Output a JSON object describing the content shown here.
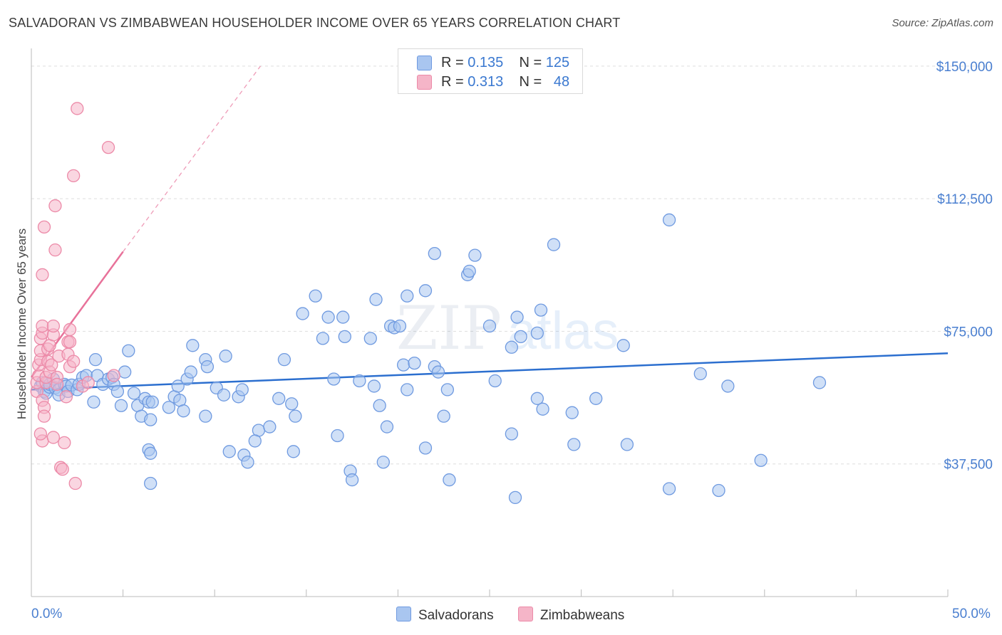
{
  "title": "SALVADORAN VS ZIMBABWEAN HOUSEHOLDER INCOME OVER 65 YEARS CORRELATION CHART",
  "source": "Source: ZipAtlas.com",
  "watermark": {
    "zip": "ZIP",
    "atlas": "atlas"
  },
  "colors": {
    "blue_fill": "#a9c6f0",
    "blue_stroke": "#6f9ae0",
    "blue_line": "#2c6fcf",
    "pink_fill": "#f5b5c8",
    "pink_stroke": "#ec8aa8",
    "pink_line": "#e8729a",
    "axis_text": "#4a7fd0",
    "grid": "#dddddd"
  },
  "legend": {
    "rows": [
      {
        "r_label": "R = ",
        "r_value": "0.135",
        "n_label": "N = ",
        "n_value": "125",
        "color": "#a9c6f0"
      },
      {
        "r_label": "R = ",
        "r_value": "0.313",
        "n_label": "N = ",
        "n_value": "48",
        "color": "#f5b5c8"
      }
    ]
  },
  "bottom_legend": [
    "Salvadorans",
    "Zimbabweans"
  ],
  "chart_data": {
    "type": "scatter",
    "title": "SALVADORAN VS ZIMBABWEAN HOUSEHOLDER INCOME OVER 65 YEARS CORRELATION CHART",
    "xlabel": "",
    "ylabel": "Householder Income Over 65 years",
    "xlim": [
      0,
      50
    ],
    "ylim": [
      0,
      155000
    ],
    "x_tick_labels": {
      "min": "0.0%",
      "max": "50.0%"
    },
    "y_ticks": [
      {
        "value": 37500,
        "label": "$37,500"
      },
      {
        "value": 75000,
        "label": "$75,000"
      },
      {
        "value": 112500,
        "label": "$112,500"
      },
      {
        "value": 150000,
        "label": "$150,000"
      }
    ],
    "grid": "horizontal dashed",
    "series": [
      {
        "name": "Salvadorans",
        "r": 0.135,
        "n": 125,
        "trend": {
          "x0": 0,
          "y0": 58500,
          "x1": 50,
          "y1": 68800
        },
        "points": [
          [
            0.5,
            59500
          ],
          [
            0.6,
            60500
          ],
          [
            0.7,
            58000
          ],
          [
            0.8,
            57500
          ],
          [
            1.0,
            59200
          ],
          [
            1.0,
            60000
          ],
          [
            1.2,
            61500
          ],
          [
            1.3,
            59000
          ],
          [
            1.5,
            58500
          ],
          [
            1.5,
            57000
          ],
          [
            1.8,
            60000
          ],
          [
            1.9,
            59500
          ],
          [
            2.0,
            58000
          ],
          [
            2.2,
            59800
          ],
          [
            2.5,
            58500
          ],
          [
            2.6,
            60000
          ],
          [
            2.8,
            62000
          ],
          [
            3.0,
            62500
          ],
          [
            3.4,
            55000
          ],
          [
            3.5,
            67000
          ],
          [
            3.6,
            62500
          ],
          [
            3.9,
            60000
          ],
          [
            4.2,
            61500
          ],
          [
            4.4,
            62000
          ],
          [
            4.5,
            60000
          ],
          [
            4.7,
            58000
          ],
          [
            4.9,
            54000
          ],
          [
            5.1,
            63500
          ],
          [
            5.3,
            69500
          ],
          [
            5.6,
            57500
          ],
          [
            5.8,
            54000
          ],
          [
            6.0,
            51000
          ],
          [
            6.2,
            56000
          ],
          [
            6.4,
            55000
          ],
          [
            6.5,
            50000
          ],
          [
            6.6,
            55000
          ],
          [
            6.4,
            41500
          ],
          [
            6.5,
            40500
          ],
          [
            6.5,
            32000
          ],
          [
            7.5,
            53500
          ],
          [
            7.8,
            56500
          ],
          [
            8.0,
            59500
          ],
          [
            8.1,
            55500
          ],
          [
            8.3,
            52500
          ],
          [
            8.5,
            61500
          ],
          [
            8.7,
            63500
          ],
          [
            8.8,
            71000
          ],
          [
            9.5,
            67000
          ],
          [
            9.5,
            51000
          ],
          [
            9.6,
            65000
          ],
          [
            10.1,
            59000
          ],
          [
            10.5,
            57000
          ],
          [
            10.6,
            68000
          ],
          [
            10.8,
            41000
          ],
          [
            11.3,
            56500
          ],
          [
            11.5,
            58500
          ],
          [
            11.6,
            40000
          ],
          [
            11.8,
            38000
          ],
          [
            12.4,
            47000
          ],
          [
            12.2,
            44000
          ],
          [
            13.0,
            48000
          ],
          [
            13.5,
            56000
          ],
          [
            13.8,
            67000
          ],
          [
            14.2,
            54500
          ],
          [
            14.3,
            41000
          ],
          [
            14.8,
            80000
          ],
          [
            14.4,
            51000
          ],
          [
            15.5,
            85000
          ],
          [
            15.9,
            73000
          ],
          [
            16.2,
            79000
          ],
          [
            16.5,
            61500
          ],
          [
            16.7,
            45500
          ],
          [
            17.0,
            79000
          ],
          [
            17.1,
            73500
          ],
          [
            17.4,
            35500
          ],
          [
            17.5,
            33000
          ],
          [
            17.9,
            61000
          ],
          [
            18.5,
            73000
          ],
          [
            18.7,
            59500
          ],
          [
            18.8,
            84000
          ],
          [
            19.0,
            54000
          ],
          [
            19.4,
            48000
          ],
          [
            19.2,
            38000
          ],
          [
            19.6,
            76500
          ],
          [
            19.8,
            76000
          ],
          [
            20.1,
            76500
          ],
          [
            20.3,
            65500
          ],
          [
            20.5,
            85000
          ],
          [
            20.9,
            66000
          ],
          [
            20.5,
            58500
          ],
          [
            21.5,
            86500
          ],
          [
            21.5,
            42000
          ],
          [
            22.0,
            65000
          ],
          [
            22.0,
            97000
          ],
          [
            22.2,
            63500
          ],
          [
            22.5,
            51000
          ],
          [
            22.7,
            58500
          ],
          [
            22.8,
            33000
          ],
          [
            23.8,
            91000
          ],
          [
            23.9,
            92000
          ],
          [
            24.2,
            96500
          ],
          [
            25.0,
            76500
          ],
          [
            25.3,
            61000
          ],
          [
            26.5,
            79000
          ],
          [
            26.2,
            70500
          ],
          [
            26.7,
            73500
          ],
          [
            26.2,
            46000
          ],
          [
            26.4,
            28000
          ],
          [
            27.6,
            74500
          ],
          [
            27.8,
            81000
          ],
          [
            27.6,
            56000
          ],
          [
            27.9,
            53000
          ],
          [
            28.5,
            99500
          ],
          [
            29.5,
            52000
          ],
          [
            29.6,
            43000
          ],
          [
            30.8,
            56000
          ],
          [
            32.3,
            71000
          ],
          [
            32.5,
            43000
          ],
          [
            34.8,
            106500
          ],
          [
            34.8,
            30500
          ],
          [
            36.5,
            63000
          ],
          [
            37.5,
            30000
          ],
          [
            38.0,
            59500
          ],
          [
            39.8,
            38500
          ],
          [
            43.0,
            60500
          ]
        ]
      },
      {
        "name": "Zimbabweans",
        "r": 0.313,
        "n": 48,
        "trend": {
          "x0": 0,
          "y0": 62000,
          "x1": 5.0,
          "y1": 97500,
          "dashed_to": {
            "x": 12.5,
            "y": 150000
          }
        },
        "points": [
          [
            0.3,
            58000
          ],
          [
            0.3,
            60500
          ],
          [
            0.4,
            62500
          ],
          [
            0.4,
            65500
          ],
          [
            0.5,
            67000
          ],
          [
            0.5,
            69500
          ],
          [
            0.5,
            73000
          ],
          [
            0.6,
            74500
          ],
          [
            0.6,
            76500
          ],
          [
            0.6,
            55500
          ],
          [
            0.7,
            53500
          ],
          [
            0.7,
            51000
          ],
          [
            0.6,
            44000
          ],
          [
            0.5,
            46000
          ],
          [
            0.6,
            91000
          ],
          [
            0.7,
            104500
          ],
          [
            0.8,
            60500
          ],
          [
            0.8,
            62000
          ],
          [
            0.9,
            66500
          ],
          [
            0.9,
            70000
          ],
          [
            1.0,
            71000
          ],
          [
            1.0,
            63500
          ],
          [
            1.1,
            65500
          ],
          [
            1.2,
            74000
          ],
          [
            1.2,
            76500
          ],
          [
            1.2,
            45000
          ],
          [
            1.3,
            110500
          ],
          [
            1.3,
            98000
          ],
          [
            1.4,
            62000
          ],
          [
            1.4,
            60000
          ],
          [
            1.5,
            68000
          ],
          [
            1.6,
            36500
          ],
          [
            1.7,
            36000
          ],
          [
            1.8,
            43500
          ],
          [
            1.9,
            56500
          ],
          [
            2.0,
            72000
          ],
          [
            2.0,
            68500
          ],
          [
            2.1,
            65000
          ],
          [
            2.1,
            72000
          ],
          [
            2.1,
            75500
          ],
          [
            2.3,
            66500
          ],
          [
            2.3,
            119000
          ],
          [
            2.5,
            138000
          ],
          [
            2.4,
            32000
          ],
          [
            2.8,
            59500
          ],
          [
            3.1,
            60500
          ],
          [
            4.2,
            127000
          ],
          [
            4.5,
            62500
          ]
        ]
      }
    ]
  }
}
